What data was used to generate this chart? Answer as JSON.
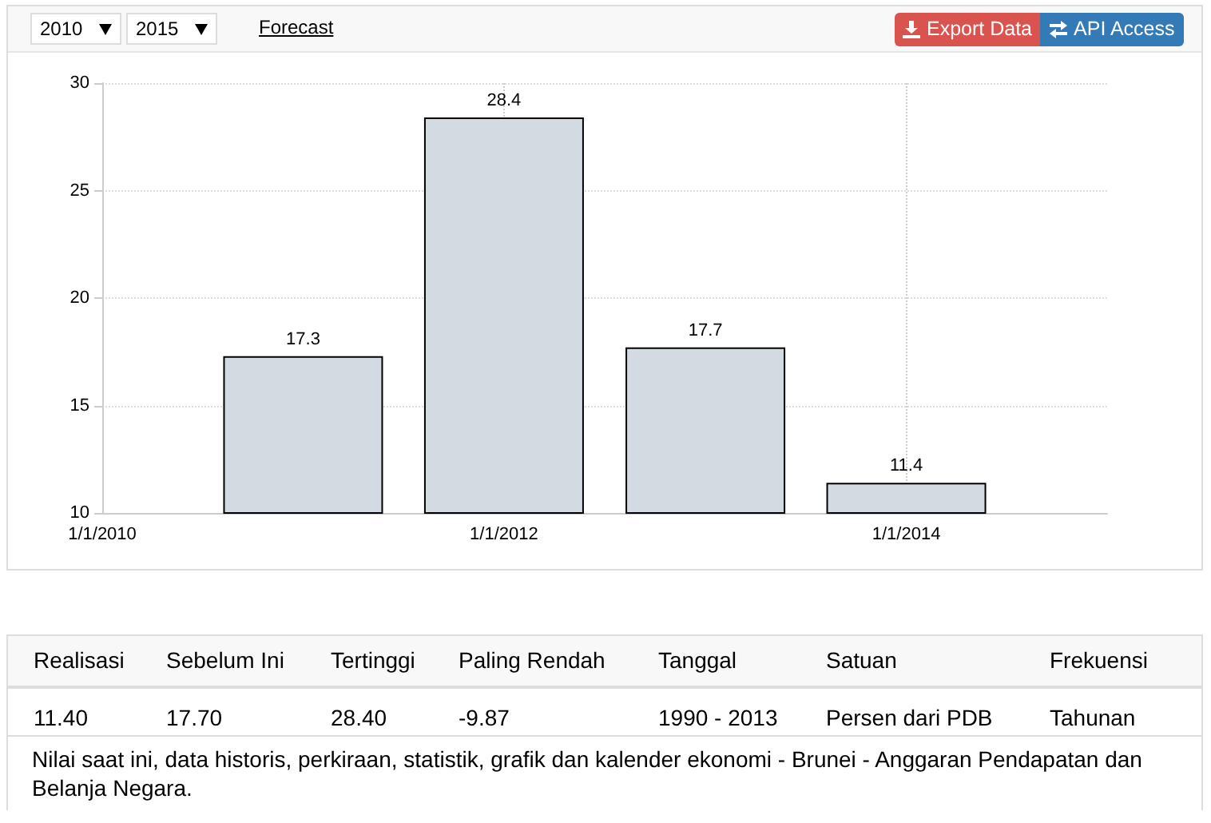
{
  "chart_data": {
    "type": "bar",
    "x": [
      "2011",
      "2012",
      "2013",
      "2014"
    ],
    "values": [
      17.3,
      28.4,
      17.7,
      11.4
    ],
    "color": "#d3dae2",
    "data_labels": true,
    "xlim": [
      "2010",
      "2015"
    ],
    "xticks": [
      {
        "value": "2010",
        "label": "1/1/2010"
      },
      {
        "value": "2012",
        "label": "1/1/2012"
      },
      {
        "value": "2014",
        "label": "1/1/2014"
      }
    ],
    "ylim": [
      10,
      30
    ],
    "yticks": [
      10,
      15,
      20,
      25,
      30
    ],
    "grid": true,
    "annotations": [
      "2010",
      "2015",
      "Forecast",
      "Export Data",
      "API Access",
      "Realisasi",
      "Sebelum Ini",
      "Tertinggi",
      "Paling Rendah",
      "Tanggal",
      "Satuan",
      "Frekuensi",
      "11.40",
      "17.70",
      "28.40",
      "-9.87",
      "1990 - 2013",
      "Persen dari PDB",
      "Tahunan",
      "Nilai saat ini, data historis, perkiraan, statistik, grafik dan kalender ekonomi - Brunei - Anggaran Pendapatan dan Belanja Negara."
    ]
  }
}
